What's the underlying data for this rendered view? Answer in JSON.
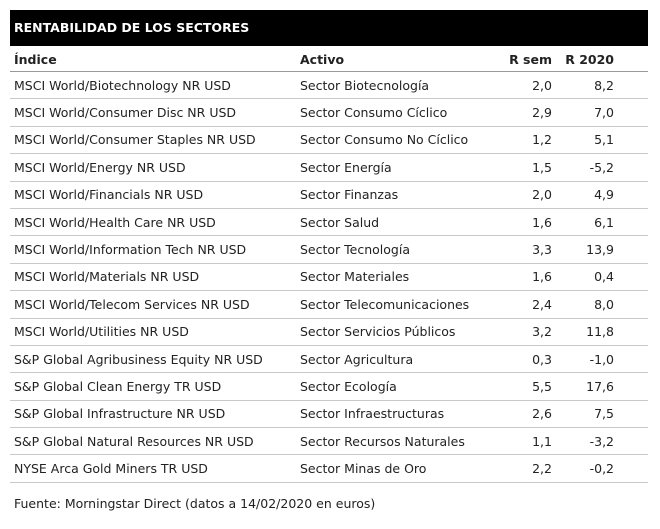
{
  "header": {
    "title": "RENTABILIDAD DE LOS SECTORES"
  },
  "table": {
    "columns": [
      "Índice",
      "Activo",
      "R sem",
      "R 2020"
    ],
    "rows": [
      [
        "MSCI World/Biotechnology NR USD",
        "Sector Biotecnología",
        "2,0",
        "8,2"
      ],
      [
        "MSCI World/Consumer Disc NR USD",
        "Sector Consumo Cíclico",
        "2,9",
        "7,0"
      ],
      [
        "MSCI World/Consumer Staples NR USD",
        "Sector Consumo No Cíclico",
        "1,2",
        "5,1"
      ],
      [
        "MSCI World/Energy NR USD",
        "Sector Energía",
        "1,5",
        "-5,2"
      ],
      [
        "MSCI World/Financials NR USD",
        "Sector Finanzas",
        "2,0",
        "4,9"
      ],
      [
        "MSCI World/Health Care NR USD",
        "Sector Salud",
        "1,6",
        "6,1"
      ],
      [
        "MSCI World/Information Tech NR USD",
        "Sector Tecnología",
        "3,3",
        "13,9"
      ],
      [
        "MSCI World/Materials NR USD",
        "Sector Materiales",
        "1,6",
        "0,4"
      ],
      [
        "MSCI World/Telecom Services NR USD",
        "Sector Telecomunicaciones",
        "2,4",
        "8,0"
      ],
      [
        "MSCI World/Utilities NR USD",
        "Sector Servicios Públicos",
        "3,2",
        "11,8"
      ],
      [
        "S&P Global Agribusiness Equity NR USD",
        "Sector Agricultura",
        "0,3",
        "-1,0"
      ],
      [
        "S&P Global Clean Energy TR USD",
        "Sector Ecología",
        "5,5",
        "17,6"
      ],
      [
        "S&P Global Infrastructure NR USD",
        "Sector Infraestructuras",
        "2,6",
        "7,5"
      ],
      [
        "S&P Global Natural Resources NR USD",
        "Sector Recursos Naturales",
        "1,1",
        "-3,2"
      ],
      [
        "NYSE Arca Gold Miners TR USD",
        "Sector Minas de Oro",
        "2,2",
        "-0,2"
      ]
    ]
  },
  "footer": {
    "source": "Fuente: Morningstar Direct (datos a 14/02/2020 en euros)"
  }
}
